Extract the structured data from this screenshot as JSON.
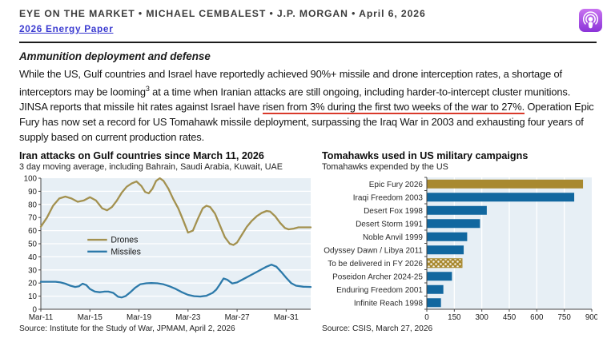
{
  "header": {
    "title_line": "EYE ON THE MARKET • MICHAEL CEMBALEST • J.P. MORGAN • April 6, 2026",
    "link_label": "2026 Energy Paper",
    "podcast_icon": "apple-podcasts"
  },
  "section": {
    "heading": "Ammunition deployment and defense"
  },
  "paragraph": {
    "p1": "While the US, Gulf countries and Israel have reportedly achieved 90%+ missile and drone interception rates, a shortage of interceptors may be looming",
    "sup": "3",
    "p2": " at a time when Iranian attacks are still ongoing, including harder-to-intercept cluster munitions.  JINSA reports that missile hit rates against Israel have ",
    "underline": "risen from 3% during the first two weeks of the war to 27%.",
    "p3": "  Operation Epic Fury has now set a record for US Tomahawk missile deployment, surpassing the Iraq War in 2003 and exhausting four years of supply based on current production rates."
  },
  "accent_colors": {
    "underline_red": "#d93a2b",
    "link_blue": "#3a3ad0",
    "drones_tan": "#a3914f",
    "missiles_blue": "#2d7aaa",
    "bar_blue": "#11679f",
    "bar_gold": "#a8892f"
  },
  "chart_data": [
    {
      "type": "line",
      "title": "Iran attacks on Gulf countries since March 11, 2026",
      "subtitle": "3 day moving average, including Bahrain, Saudi Arabia, Kuwait, UAE",
      "source": "Source: Institute for the Study of War, JPMAM, April 2, 2026",
      "ylim": [
        0,
        100
      ],
      "ytick_step": 10,
      "xlim": [
        0,
        22
      ],
      "x_unit": "days since Mar-11",
      "xticks": [
        {
          "pos": 0,
          "label": "Mar-11"
        },
        {
          "pos": 4,
          "label": "Mar-15"
        },
        {
          "pos": 8,
          "label": "Mar-19"
        },
        {
          "pos": 12,
          "label": "Mar-23"
        },
        {
          "pos": 16,
          "label": "Mar-27"
        },
        {
          "pos": 20,
          "label": "Mar-31"
        }
      ],
      "plot_bg": "#e7eff5",
      "grid_color": "#ffffff",
      "legend_y": [
        53,
        44
      ],
      "series": [
        {
          "name": "Drones",
          "color": "#a3914f",
          "points": [
            [
              0,
              63
            ],
            [
              0.5,
              70
            ],
            [
              1,
              79
            ],
            [
              1.5,
              84.5
            ],
            [
              2,
              86
            ],
            [
              2.5,
              84.5
            ],
            [
              3,
              82
            ],
            [
              3.5,
              83
            ],
            [
              4,
              85.5
            ],
            [
              4.5,
              83
            ],
            [
              5,
              77
            ],
            [
              5.4,
              75.5
            ],
            [
              5.8,
              78
            ],
            [
              6.2,
              83
            ],
            [
              6.6,
              89
            ],
            [
              7,
              93.5
            ],
            [
              7.4,
              96
            ],
            [
              7.8,
              97.5
            ],
            [
              8.2,
              94
            ],
            [
              8.5,
              89.5
            ],
            [
              8.8,
              88.5
            ],
            [
              9.1,
              92
            ],
            [
              9.4,
              98
            ],
            [
              9.7,
              100
            ],
            [
              10,
              98
            ],
            [
              10.4,
              92
            ],
            [
              10.8,
              84
            ],
            [
              11.2,
              77
            ],
            [
              11.6,
              68
            ],
            [
              12,
              58.5
            ],
            [
              12.4,
              60
            ],
            [
              12.8,
              69
            ],
            [
              13.2,
              77
            ],
            [
              13.5,
              79
            ],
            [
              13.8,
              78
            ],
            [
              14.2,
              73
            ],
            [
              14.6,
              64
            ],
            [
              15,
              55
            ],
            [
              15.4,
              50
            ],
            [
              15.7,
              49
            ],
            [
              16,
              51
            ],
            [
              16.4,
              57
            ],
            [
              16.8,
              63
            ],
            [
              17.2,
              67.5
            ],
            [
              17.6,
              71
            ],
            [
              18,
              73.5
            ],
            [
              18.4,
              75
            ],
            [
              18.7,
              74.5
            ],
            [
              19.1,
              71
            ],
            [
              19.5,
              66
            ],
            [
              19.9,
              62
            ],
            [
              20.2,
              61
            ],
            [
              20.6,
              61.5
            ],
            [
              21,
              62.5
            ],
            [
              21.5,
              62.5
            ],
            [
              22,
              62.5
            ]
          ]
        },
        {
          "name": "Missiles",
          "color": "#2d7aaa",
          "points": [
            [
              0,
              21
            ],
            [
              0.6,
              21
            ],
            [
              1.2,
              21
            ],
            [
              1.6,
              20.5
            ],
            [
              2,
              19.5
            ],
            [
              2.4,
              18
            ],
            [
              2.8,
              17
            ],
            [
              3.1,
              17.5
            ],
            [
              3.4,
              19.5
            ],
            [
              3.7,
              18.5
            ],
            [
              4,
              15.5
            ],
            [
              4.4,
              13.5
            ],
            [
              4.8,
              13
            ],
            [
              5.2,
              13.5
            ],
            [
              5.5,
              13.5
            ],
            [
              5.9,
              12.5
            ],
            [
              6.3,
              9.5
            ],
            [
              6.6,
              9
            ],
            [
              6.9,
              10
            ],
            [
              7.3,
              13
            ],
            [
              7.7,
              16.5
            ],
            [
              8.1,
              19
            ],
            [
              8.6,
              19.8
            ],
            [
              9,
              20
            ],
            [
              9.5,
              19.8
            ],
            [
              10,
              19
            ],
            [
              10.5,
              17.5
            ],
            [
              11,
              15.5
            ],
            [
              11.5,
              13
            ],
            [
              12,
              11
            ],
            [
              12.5,
              10
            ],
            [
              13,
              9.7
            ],
            [
              13.5,
              10.3
            ],
            [
              14,
              12.5
            ],
            [
              14.3,
              15
            ],
            [
              14.6,
              19
            ],
            [
              14.9,
              23.5
            ],
            [
              15.2,
              22.5
            ],
            [
              15.6,
              19.7
            ],
            [
              16,
              20.5
            ],
            [
              16.5,
              23
            ],
            [
              17,
              25.5
            ],
            [
              17.5,
              28
            ],
            [
              18,
              30.5
            ],
            [
              18.4,
              32.5
            ],
            [
              18.8,
              34
            ],
            [
              19.2,
              32.5
            ],
            [
              19.6,
              28.5
            ],
            [
              20,
              24
            ],
            [
              20.4,
              20
            ],
            [
              20.8,
              18
            ],
            [
              21.4,
              17.2
            ],
            [
              22,
              17
            ]
          ]
        }
      ]
    },
    {
      "type": "bar",
      "orientation": "horizontal",
      "title": "Tomahawks used in US military campaigns",
      "subtitle": "Tomahawks expended by the US",
      "source": "Source: CSIS, March 27, 2026",
      "xlim": [
        0,
        900
      ],
      "xtick_step": 150,
      "plot_bg": "#e7eff5",
      "grid_color": "#ffffff",
      "categories": [
        "Epic Fury 2026",
        "Iraqi Freedom 2003",
        "Desert Fox 1998",
        "Desert Storm 1991",
        "Noble Anvil 1999",
        "Odyssey Dawn / Libya 2011",
        "To be delivered in FY 2026",
        "Poseidon Archer 2024-25",
        "Enduring Freedom 2001",
        "Infinite Reach 1998"
      ],
      "values": [
        850,
        802,
        325,
        288,
        218,
        199,
        190,
        135,
        88,
        75
      ],
      "bar_styles": [
        "gold",
        "blue",
        "blue",
        "blue",
        "blue",
        "blue",
        "gold_dotted",
        "blue",
        "blue",
        "blue"
      ],
      "colors": {
        "blue": "#11679f",
        "gold": "#a8892f"
      }
    }
  ]
}
